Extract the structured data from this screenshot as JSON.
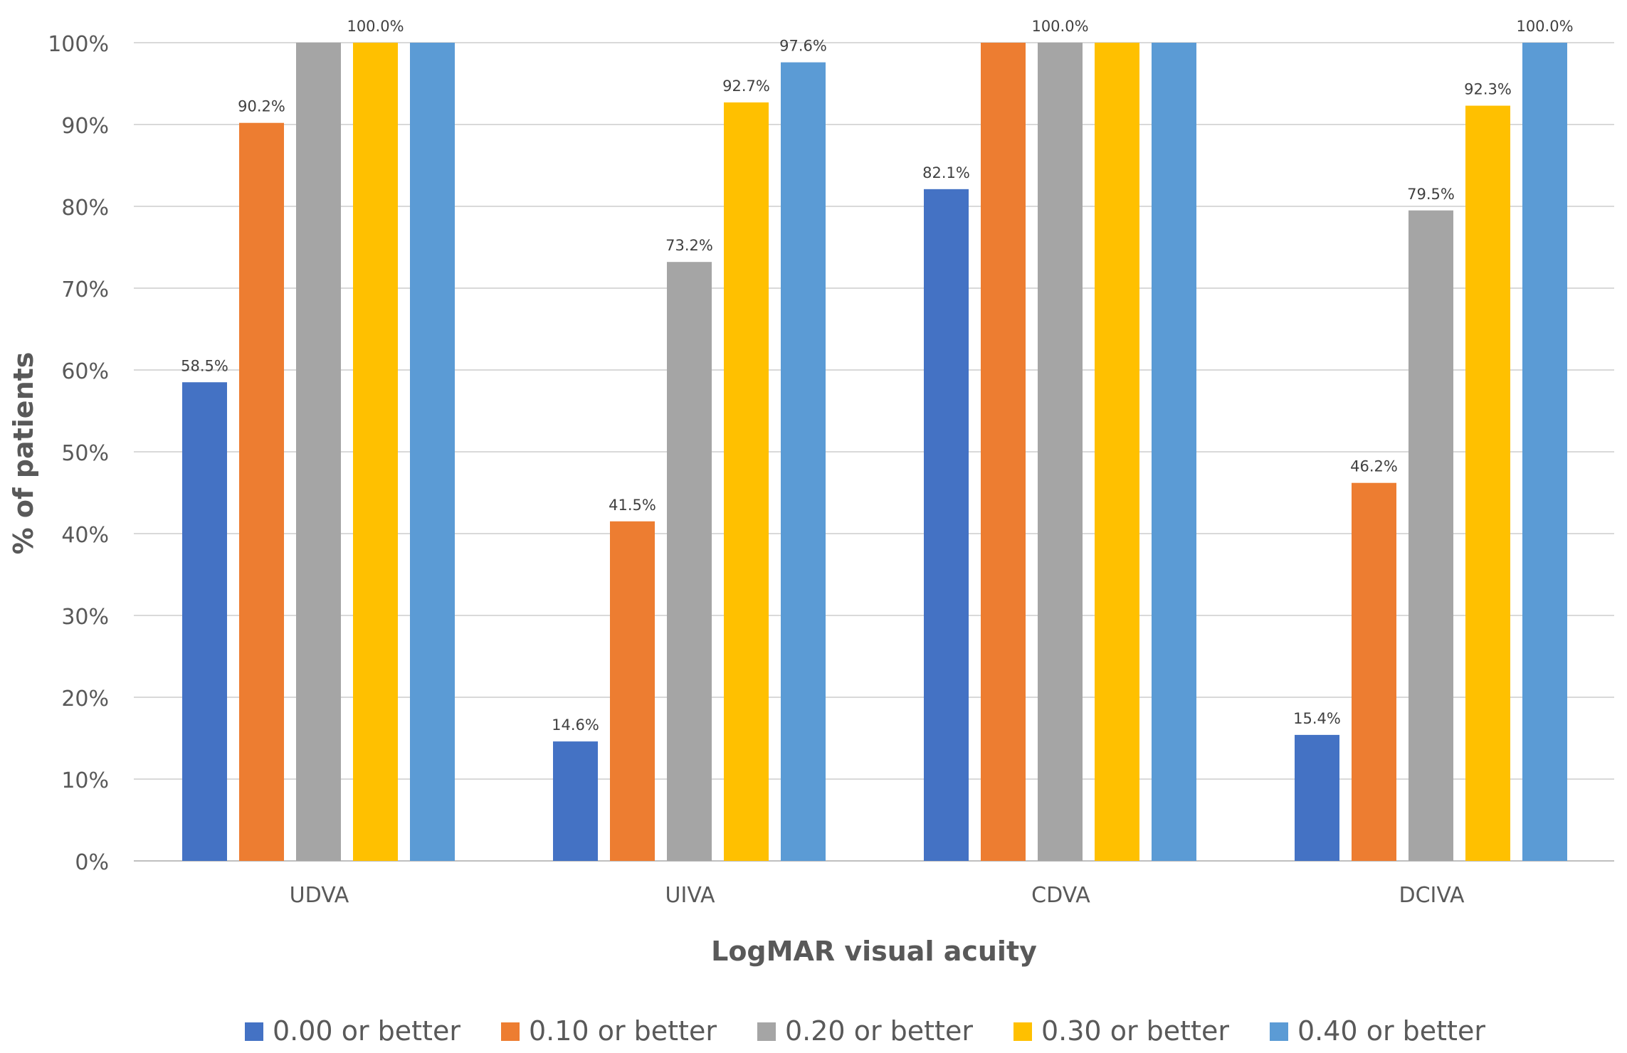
{
  "chart_data": {
    "type": "bar",
    "title": "",
    "xlabel": "LogMAR visual acuity",
    "ylabel": "% of patients",
    "ylim": [
      0,
      100
    ],
    "y_ticks": [
      0,
      10,
      20,
      30,
      40,
      50,
      60,
      70,
      80,
      90,
      100
    ],
    "y_tick_suffix": "%",
    "grid": true,
    "legend_position": "bottom",
    "categories": [
      "UDVA",
      "UIVA",
      "CDVA",
      "DCIVA"
    ],
    "series": [
      {
        "name": "0.00 or better",
        "color": "#4472C4",
        "values": [
          58.5,
          14.6,
          82.1,
          15.4
        ]
      },
      {
        "name": "0.10 or better",
        "color": "#ED7D31",
        "values": [
          90.2,
          41.5,
          100,
          46.2
        ]
      },
      {
        "name": "0.20 or better",
        "color": "#A5A5A5",
        "values": [
          100,
          73.2,
          100,
          79.5
        ]
      },
      {
        "name": "0.30 or better",
        "color": "#FFC000",
        "values": [
          100,
          92.7,
          100,
          92.3
        ]
      },
      {
        "name": "0.40 or better",
        "color": "#5B9BD5",
        "values": [
          100,
          97.6,
          100,
          100
        ]
      }
    ],
    "data_labels": [
      {
        "category": "UDVA",
        "series": "0.00 or better",
        "text": "58.5%"
      },
      {
        "category": "UDVA",
        "series": "0.10 or better",
        "text": "90.2%"
      },
      {
        "category": "UDVA",
        "series": "0.30 or better",
        "text": "100.0%"
      },
      {
        "category": "UIVA",
        "series": "0.00 or better",
        "text": "14.6%"
      },
      {
        "category": "UIVA",
        "series": "0.10 or better",
        "text": "41.5%"
      },
      {
        "category": "UIVA",
        "series": "0.20 or better",
        "text": "73.2%"
      },
      {
        "category": "UIVA",
        "series": "0.30 or better",
        "text": "92.7%"
      },
      {
        "category": "UIVA",
        "series": "0.40 or better",
        "text": "97.6%"
      },
      {
        "category": "CDVA",
        "series": "0.00 or better",
        "text": "82.1%"
      },
      {
        "category": "CDVA",
        "series": "0.20 or better",
        "text": "100.0%"
      },
      {
        "category": "DCIVA",
        "series": "0.00 or better",
        "text": "15.4%"
      },
      {
        "category": "DCIVA",
        "series": "0.10 or better",
        "text": "46.2%"
      },
      {
        "category": "DCIVA",
        "series": "0.20 or better",
        "text": "79.5%"
      },
      {
        "category": "DCIVA",
        "series": "0.30 or better",
        "text": "92.3%"
      },
      {
        "category": "DCIVA",
        "series": "0.40 or better",
        "text": "100.0%"
      }
    ]
  }
}
